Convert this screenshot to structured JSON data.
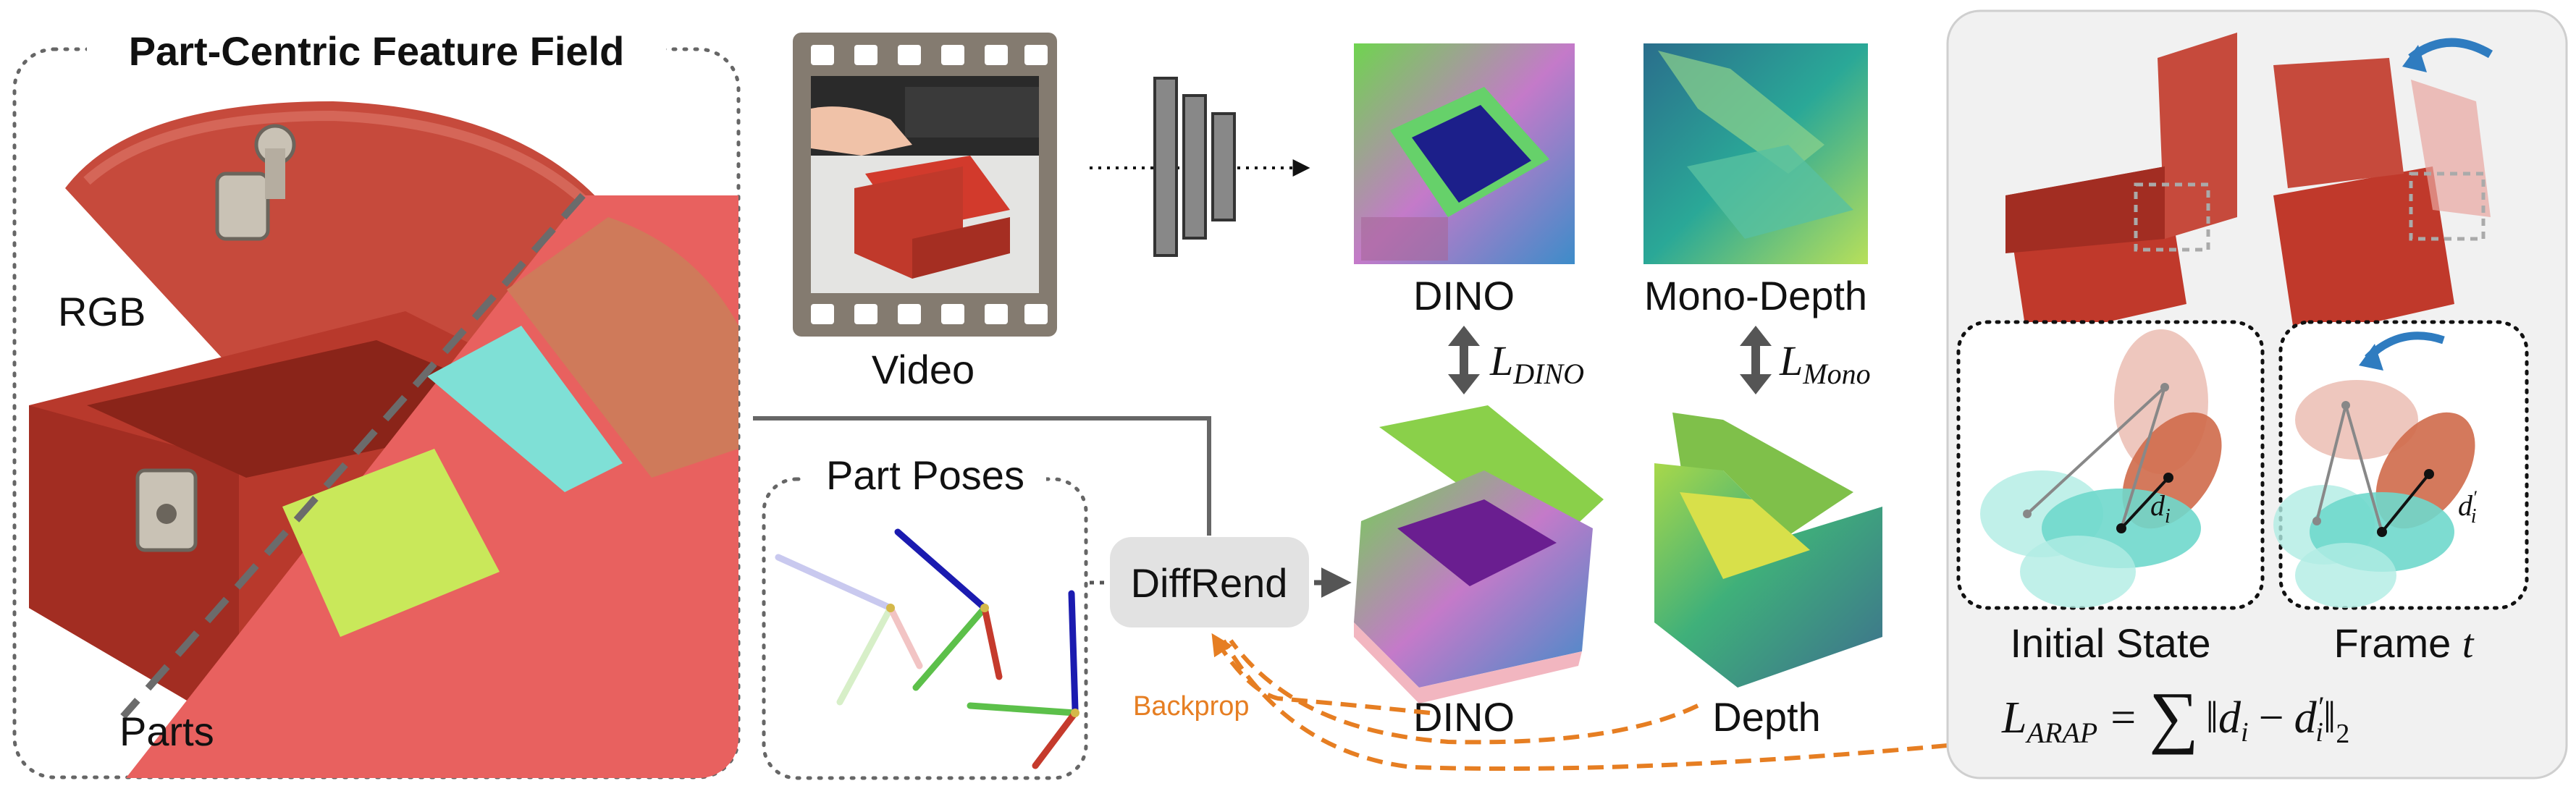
{
  "field_panel": {
    "title": "Part-Centric Feature Field",
    "rgb_label": "RGB",
    "parts_label": "Parts"
  },
  "video": {
    "label": "Video"
  },
  "dino_top": {
    "label": "DINO"
  },
  "mono_depth": {
    "label": "Mono-Depth"
  },
  "loss_dino": {
    "symbol": "L",
    "subscript": "DINO"
  },
  "loss_mono": {
    "symbol": "L",
    "subscript": "Mono"
  },
  "part_poses": {
    "title": "Part Poses"
  },
  "diffrend": {
    "label": "DiffRend"
  },
  "dino_render": {
    "label": "DINO"
  },
  "depth_render": {
    "label": "Depth"
  },
  "backprop": {
    "label": "Backprop"
  },
  "arap": {
    "initial_state": "Initial State",
    "frame_prefix": "Frame ",
    "frame_var": "t",
    "d_initial": "d",
    "d_initial_sub": "i",
    "d_frame": "d",
    "d_frame_sub": "i",
    "d_frame_prime": "′",
    "loss_lhs": "L",
    "loss_lhs_sub": "ARAP",
    "loss_eq": "=",
    "loss_sum": "∑",
    "loss_body_open": "‖",
    "loss_di": "d",
    "loss_di_sub": "i",
    "loss_minus": "−",
    "loss_dpi": "d",
    "loss_dpi_prime": "′",
    "loss_dpi_sub": "i",
    "loss_body_close": "‖",
    "loss_norm_sub": "2"
  },
  "colors": {
    "backprop": "#e67e22",
    "arrow_blue": "#2f7cc0",
    "box_red": "#c0392b",
    "teal": "#7fe0d6",
    "part_salmon": "#e8615f",
    "part_orange": "#cf7a5a",
    "part_lime": "#c9e85a"
  }
}
